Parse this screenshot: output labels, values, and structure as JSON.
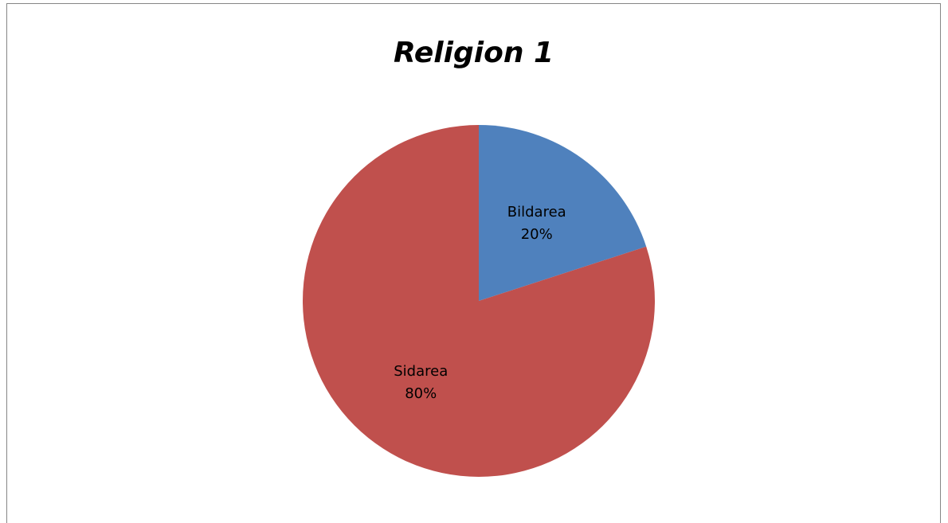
{
  "chart_data": {
    "type": "pie",
    "title": "Religion 1",
    "categories": [
      "Bildarea",
      "Sidarea"
    ],
    "values": [
      20,
      80
    ],
    "value_labels": [
      "20%",
      "80%"
    ],
    "colors": [
      "#4f81bd",
      "#c0504d"
    ],
    "start_angle": "12 o'clock",
    "direction": "clockwise",
    "legend": "none",
    "data_labels": "inside"
  }
}
